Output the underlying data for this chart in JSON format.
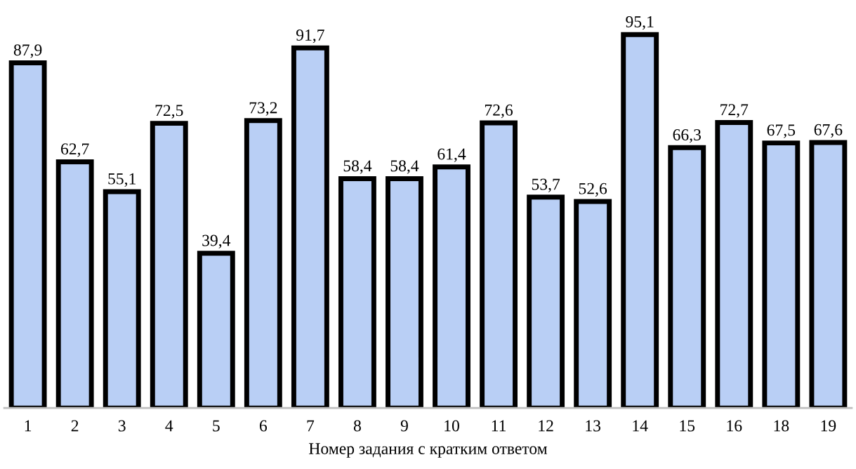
{
  "chart_data": {
    "type": "bar",
    "xlabel": "Номер задания с кратким ответом",
    "categories": [
      "1",
      "2",
      "3",
      "4",
      "5",
      "6",
      "7",
      "8",
      "9",
      "10",
      "11",
      "12",
      "13",
      "14",
      "15",
      "16",
      "18",
      "19"
    ],
    "values": [
      87.9,
      62.7,
      55.1,
      72.5,
      39.4,
      73.2,
      91.7,
      58.4,
      58.4,
      61.4,
      72.6,
      53.7,
      52.6,
      95.1,
      66.3,
      72.7,
      67.5,
      67.6
    ],
    "value_labels": [
      "87,9",
      "62,7",
      "55,1",
      "72,5",
      "39,4",
      "73,2",
      "91,7",
      "58,4",
      "58,4",
      "61,4",
      "72,6",
      "53,7",
      "52,6",
      "95,1",
      "66,3",
      "72,7",
      "67,5",
      "67,6"
    ],
    "color": "#b9cff5",
    "grid": false,
    "legend": false
  }
}
